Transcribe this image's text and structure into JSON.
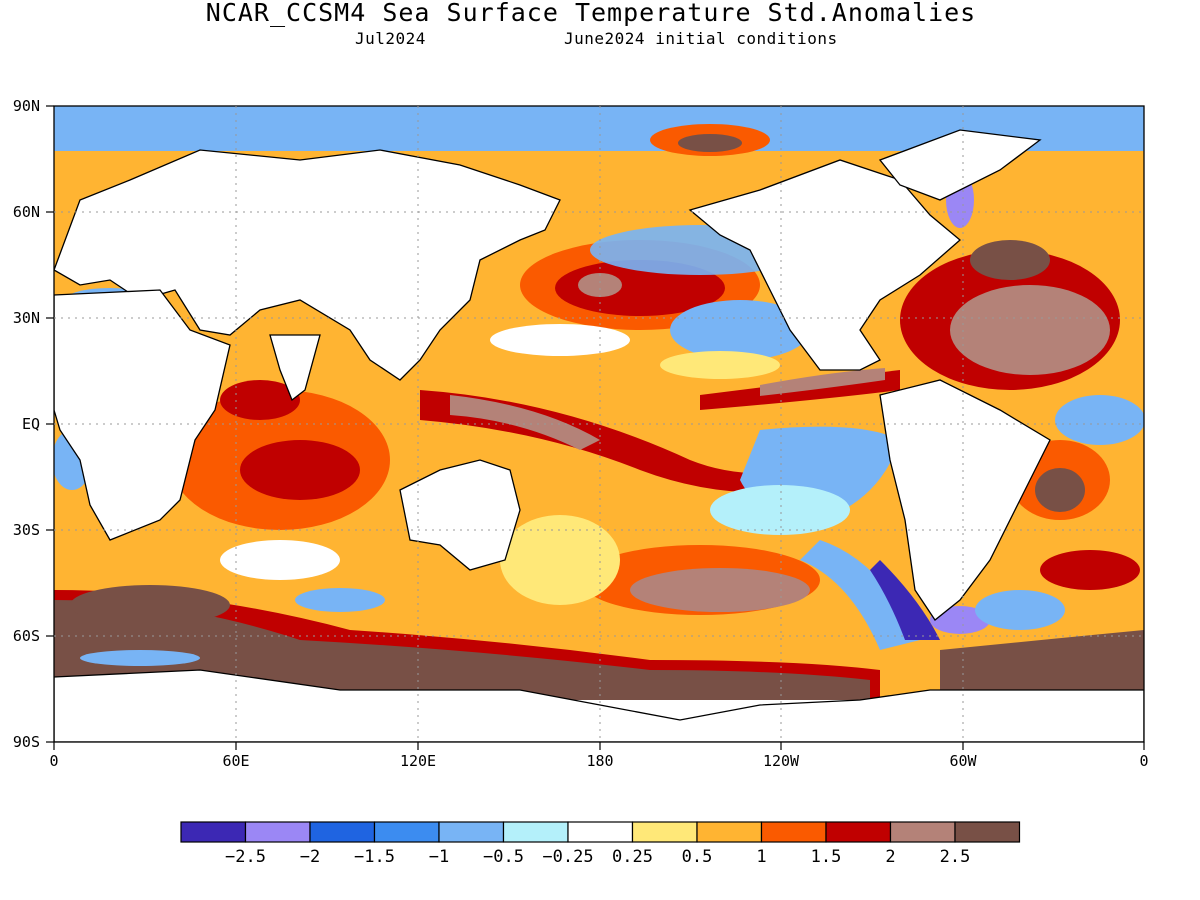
{
  "map": {
    "title": "NCAR_CCSM4 Sea Surface Temperature Std.Anomalies",
    "valid_month": "Jul2024",
    "initial_conditions": "June2024 initial conditions",
    "lon_ticks": [
      "0",
      "60E",
      "120E",
      "180",
      "120W",
      "60W",
      "0"
    ],
    "lat_ticks": [
      "90N",
      "60N",
      "30N",
      "EQ",
      "30S",
      "60S",
      "90S"
    ],
    "colorbar": {
      "colors": [
        "#3c28b4",
        "#9b87f5",
        "#1f64e1",
        "#3c8cf0",
        "#78b4f5",
        "#b4f0fa",
        "#ffffff",
        "#ffe878",
        "#ffb432",
        "#fa5a00",
        "#c00000",
        "#b48278",
        "#785046"
      ],
      "labels": [
        "−2.5",
        "−2",
        "−1.5",
        "−1",
        "−0.5",
        "−0.25",
        "0.25",
        "0.5",
        "1",
        "1.5",
        "2",
        "2.5"
      ]
    }
  }
}
